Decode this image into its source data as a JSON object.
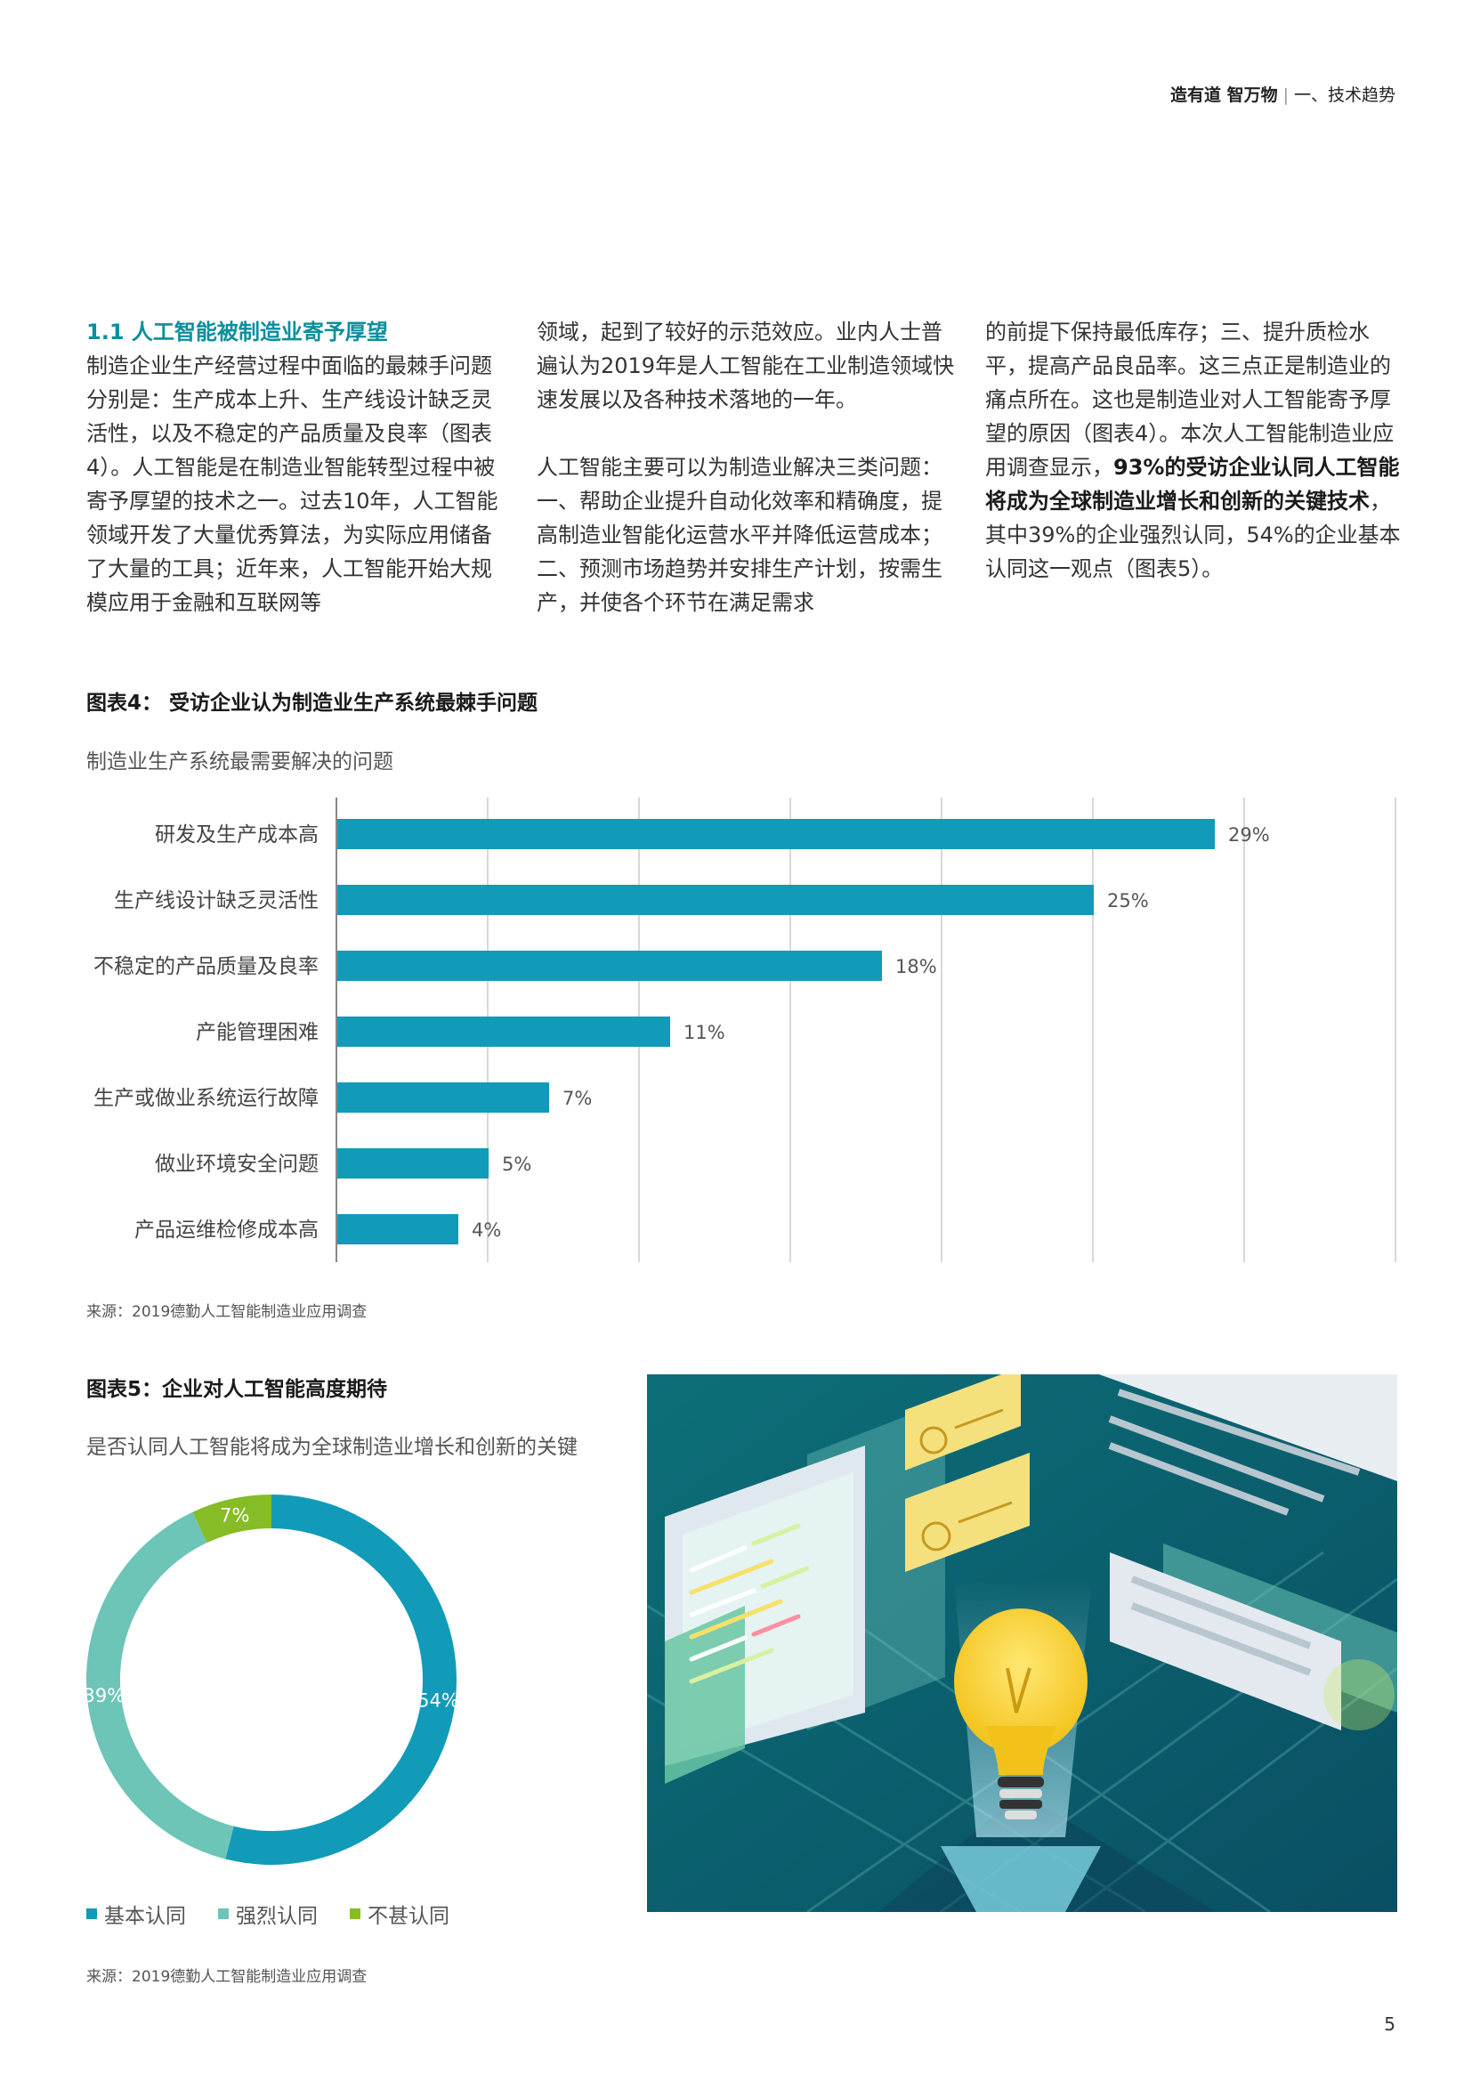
{
  "header": {
    "brand": "造有道 智万物",
    "separator": "|",
    "section": "一、技术趋势"
  },
  "col1": {
    "title": "1.1 人工智能被制造业寄予厚望",
    "body": "制造企业生产经营过程中面临的最棘手问题分别是：生产成本上升、生产线设计缺乏灵活性，以及不稳定的产品质量及良率（图表4）。人工智能是在制造业智能转型过程中被寄予厚望的技术之一。过去10年，人工智能领域开发了大量优秀算法，为实际应用储备了大量的工具；近年来，人工智能开始大规模应用于金融和互联网等"
  },
  "col2": {
    "p1": "领域，起到了较好的示范效应。业内人士普遍认为2019年是人工智能在工业制造领域快速发展以及各种技术落地的一年。",
    "p2": "人工智能主要可以为制造业解决三类问题：一、帮助企业提升自动化效率和精确度，提高制造业智能化运营水平并降低运营成本；二、预测市场趋势并安排生产计划，按需生产，并使各个环节在满足需求"
  },
  "col3": {
    "pre": "的前提下保持最低库存；三、提升质检水平，提高产品良品率。这三点正是制造业的痛点所在。这也是制造业对人工智能寄予厚望的原因（图表4）。本次人工智能制造业应用调查显示，",
    "bold": "93%的受访企业认同人工智能将成为全球制造业增长和创新的关键技术",
    "post": "，其中39%的企业强烈认同，54%的企业基本认同这一观点（图表5）。"
  },
  "fig4": {
    "title": "图表4： 受访企业认为制造业生产系统最棘手问题",
    "subtitle": "制造业生产系统最需要解决的问题",
    "source": "来源：2019德勤人工智能制造业应用调查"
  },
  "fig5": {
    "title": "图表5：企业对人工智能高度期待",
    "subtitle": "是否认同人工智能将成为全球制造业增长和创新的关键",
    "source": "来源：2019德勤人工智能制造业应用调查",
    "legend": [
      "基本认同",
      "强烈认同",
      "不甚认同"
    ]
  },
  "page_number": "5",
  "colors": {
    "accent_teal": "#0a8f9c",
    "bar": "#119bb8",
    "donut_main": "#119bb8",
    "donut_strong": "#6cc5b6",
    "donut_weak": "#86bc25",
    "grid": "#cccccc"
  },
  "chart_data": [
    {
      "type": "bar",
      "orientation": "horizontal",
      "categories": [
        "研发及生产成本高",
        "生产线设计缺乏灵活性",
        "不稳定的产品质量及良率",
        "产能管理困难",
        "生产或做业系统运行故障",
        "做业环境安全问题",
        "产品运维检修成本高"
      ],
      "values": [
        29,
        25,
        18,
        11,
        7,
        5,
        4
      ],
      "value_labels": [
        "29%",
        "25%",
        "18%",
        "11%",
        "7%",
        "5%",
        "4%"
      ],
      "xlim": [
        0,
        35
      ],
      "grid": true
    },
    {
      "type": "pie",
      "donut": true,
      "categories": [
        "基本认同",
        "强烈认同",
        "不甚认同"
      ],
      "values": [
        54,
        39,
        7
      ],
      "value_labels": [
        "54%",
        "39%",
        "7%"
      ],
      "legend_position": "bottom"
    }
  ]
}
